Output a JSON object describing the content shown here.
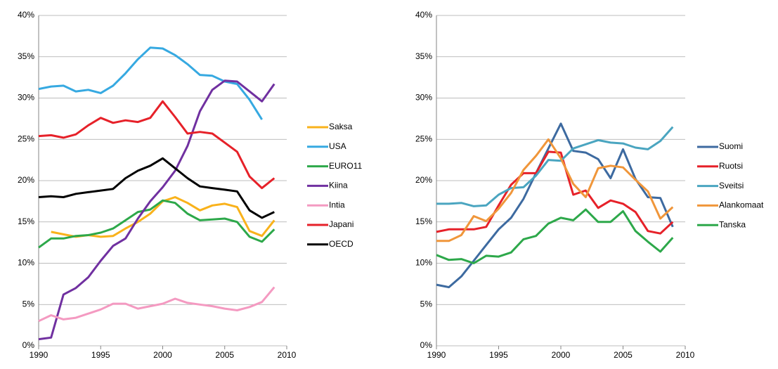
{
  "chart_data": [
    {
      "type": "line",
      "x": [
        1990,
        1991,
        1992,
        1993,
        1994,
        1995,
        1996,
        1997,
        1998,
        1999,
        2000,
        2001,
        2002,
        2003,
        2004,
        2005,
        2006,
        2007,
        2008,
        2009
      ],
      "xlim": [
        1990,
        2010
      ],
      "xticks": [
        1990,
        1995,
        2000,
        2005,
        2010
      ],
      "ylim": [
        0,
        40
      ],
      "yticks": [
        {
          "value": 0,
          "label": "0%"
        },
        {
          "value": 5,
          "label": "5%"
        },
        {
          "value": 10,
          "label": "10%"
        },
        {
          "value": 15,
          "label": "15%"
        },
        {
          "value": 20,
          "label": "20%"
        },
        {
          "value": 25,
          "label": "25%"
        },
        {
          "value": 30,
          "label": "30%"
        },
        {
          "value": 35,
          "label": "35%"
        },
        {
          "value": 40,
          "label": "40%"
        }
      ],
      "grid": true,
      "legend": "right",
      "series": [
        {
          "name": "Saksa",
          "color": "#f9b21b",
          "values": [
            null,
            13.8,
            13.5,
            13.2,
            13.4,
            13.2,
            13.3,
            14.2,
            15.0,
            16.0,
            17.5,
            18.0,
            17.3,
            16.4,
            17.0,
            17.2,
            16.8,
            13.9,
            13.3,
            15.2
          ]
        },
        {
          "name": "USA",
          "color": "#36a9e1",
          "values": [
            31.1,
            31.4,
            31.5,
            30.8,
            31.0,
            30.6,
            31.5,
            33.0,
            34.7,
            36.1,
            36.0,
            35.2,
            34.1,
            32.8,
            32.7,
            32.0,
            31.7,
            29.8,
            27.4,
            null
          ]
        },
        {
          "name": "EURO11",
          "color": "#2da84a",
          "values": [
            11.9,
            13.0,
            13.0,
            13.3,
            13.4,
            13.7,
            14.2,
            15.2,
            16.2,
            16.5,
            17.6,
            17.3,
            16.0,
            15.2,
            15.3,
            15.4,
            15.0,
            13.2,
            12.6,
            14.1
          ]
        },
        {
          "name": "Kiina",
          "color": "#7030a0",
          "values": [
            0.8,
            1.0,
            6.2,
            7.0,
            8.3,
            10.3,
            12.1,
            13.0,
            15.4,
            17.5,
            19.2,
            21.2,
            24.2,
            28.4,
            31.0,
            32.1,
            32.0,
            30.8,
            29.6,
            31.7
          ]
        },
        {
          "name": "Intia",
          "color": "#f49ac1",
          "values": [
            3.0,
            3.7,
            3.2,
            3.4,
            3.9,
            4.4,
            5.1,
            5.1,
            4.5,
            4.8,
            5.1,
            5.7,
            5.2,
            5.0,
            4.8,
            4.5,
            4.3,
            4.7,
            5.3,
            7.1
          ]
        },
        {
          "name": "Japani",
          "color": "#e62129",
          "values": [
            25.4,
            25.5,
            25.2,
            25.6,
            26.7,
            27.6,
            27.0,
            27.3,
            27.1,
            27.6,
            29.6,
            27.7,
            25.7,
            25.9,
            25.7,
            24.6,
            23.5,
            20.5,
            19.1,
            20.3
          ]
        },
        {
          "name": "OECD",
          "color": "#000000",
          "values": [
            18.0,
            18.1,
            18.0,
            18.4,
            18.6,
            18.8,
            19.0,
            20.3,
            21.2,
            21.8,
            22.7,
            21.5,
            20.3,
            19.3,
            19.1,
            18.9,
            18.7,
            16.4,
            15.5,
            16.2
          ]
        }
      ]
    },
    {
      "type": "line",
      "x": [
        1990,
        1991,
        1992,
        1993,
        1994,
        1995,
        1996,
        1997,
        1998,
        1999,
        2000,
        2001,
        2002,
        2003,
        2004,
        2005,
        2006,
        2007,
        2008,
        2009
      ],
      "xlim": [
        1990,
        2010
      ],
      "xticks": [
        1990,
        1995,
        2000,
        2005,
        2010
      ],
      "ylim": [
        0,
        40
      ],
      "yticks": [
        {
          "value": 0,
          "label": "0%"
        },
        {
          "value": 5,
          "label": "5%"
        },
        {
          "value": 10,
          "label": "10%"
        },
        {
          "value": 15,
          "label": "15%"
        },
        {
          "value": 20,
          "label": "20%"
        },
        {
          "value": 25,
          "label": "25%"
        },
        {
          "value": 30,
          "label": "30%"
        },
        {
          "value": 35,
          "label": "35%"
        },
        {
          "value": 40,
          "label": "40%"
        }
      ],
      "grid": true,
      "legend": "right",
      "series": [
        {
          "name": "Suomi",
          "color": "#3d6aa0",
          "values": [
            7.4,
            7.1,
            8.4,
            10.3,
            12.2,
            14.1,
            15.5,
            17.8,
            20.9,
            23.9,
            26.9,
            23.6,
            23.4,
            22.6,
            20.3,
            23.8,
            20.2,
            18.0,
            17.9,
            14.4
          ]
        },
        {
          "name": "Ruotsi",
          "color": "#e62129",
          "values": [
            13.8,
            14.1,
            14.1,
            14.1,
            14.4,
            17.0,
            19.5,
            20.9,
            20.9,
            23.5,
            23.4,
            18.3,
            18.8,
            16.7,
            17.6,
            17.2,
            16.2,
            13.9,
            13.6,
            15.0
          ]
        },
        {
          "name": "Sveitsi",
          "color": "#4aa5c0",
          "values": [
            17.2,
            17.2,
            17.3,
            16.9,
            17.0,
            18.3,
            19.1,
            19.2,
            20.6,
            22.5,
            22.4,
            23.9,
            24.4,
            24.9,
            24.6,
            24.5,
            24.0,
            23.8,
            24.8,
            26.5
          ]
        },
        {
          "name": "Alankomaat",
          "color": "#f0963a",
          "values": [
            12.7,
            12.7,
            13.4,
            15.7,
            15.1,
            16.6,
            18.5,
            21.3,
            23.0,
            25.0,
            22.7,
            19.6,
            18.0,
            21.5,
            21.8,
            21.6,
            20.1,
            18.7,
            15.4,
            16.8
          ]
        },
        {
          "name": "Tanska",
          "color": "#2da84a",
          "values": [
            11.0,
            10.4,
            10.5,
            10.0,
            10.9,
            10.8,
            11.3,
            12.9,
            13.3,
            14.8,
            15.5,
            15.2,
            16.5,
            15.0,
            15.0,
            16.3,
            13.9,
            12.6,
            11.4,
            13.1
          ]
        }
      ]
    }
  ]
}
